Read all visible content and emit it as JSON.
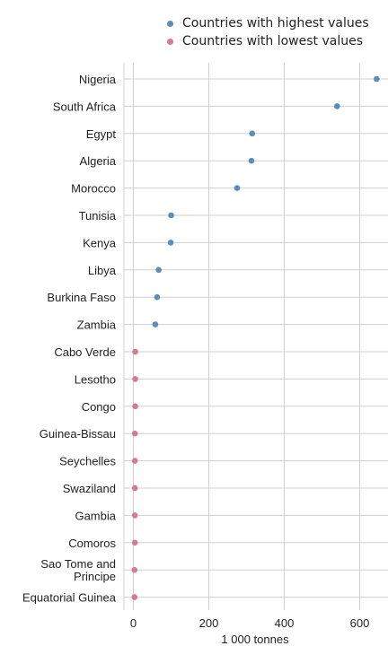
{
  "legend": {
    "high_label": "Countries with highest values",
    "low_label": "Countries with lowest values"
  },
  "colors": {
    "high": "#5b8db8",
    "low": "#d47b8f",
    "grid": "#d0d0d0"
  },
  "chart_data": {
    "type": "scatter",
    "xlabel": "1 000 tonnes",
    "xlim": [
      -25,
      675
    ],
    "xticks": [
      0,
      200,
      400,
      600
    ],
    "grid": true,
    "legend_position": "top",
    "categories": [
      "Nigeria",
      "South Africa",
      "Egypt",
      "Algeria",
      "Morocco",
      "Tunisia",
      "Kenya",
      "Libya",
      "Burkina Faso",
      "Zambia",
      "Cabo Verde",
      "Lesotho",
      "Congo",
      "Guinea-Bissau",
      "Seychelles",
      "Swaziland",
      "Gambia",
      "Comoros",
      "Sao Tome and Principe",
      "Equatorial Guinea"
    ],
    "series": [
      {
        "name": "Countries with highest values",
        "points": [
          {
            "category": "Nigeria",
            "value": 645
          },
          {
            "category": "South Africa",
            "value": 540
          },
          {
            "category": "Egypt",
            "value": 315
          },
          {
            "category": "Algeria",
            "value": 313
          },
          {
            "category": "Morocco",
            "value": 275
          },
          {
            "category": "Tunisia",
            "value": 100
          },
          {
            "category": "Kenya",
            "value": 99
          },
          {
            "category": "Libya",
            "value": 67
          },
          {
            "category": "Burkina Faso",
            "value": 63
          },
          {
            "category": "Zambia",
            "value": 58
          }
        ]
      },
      {
        "name": "Countries with lowest values",
        "points": [
          {
            "category": "Cabo Verde",
            "value": 5
          },
          {
            "category": "Lesotho",
            "value": 5
          },
          {
            "category": "Congo",
            "value": 5
          },
          {
            "category": "Guinea-Bissau",
            "value": 4
          },
          {
            "category": "Seychelles",
            "value": 4
          },
          {
            "category": "Swaziland",
            "value": 4
          },
          {
            "category": "Gambia",
            "value": 4
          },
          {
            "category": "Comoros",
            "value": 4
          },
          {
            "category": "Sao Tome and Principe",
            "value": 3
          },
          {
            "category": "Equatorial Guinea",
            "value": 3
          }
        ]
      }
    ]
  }
}
